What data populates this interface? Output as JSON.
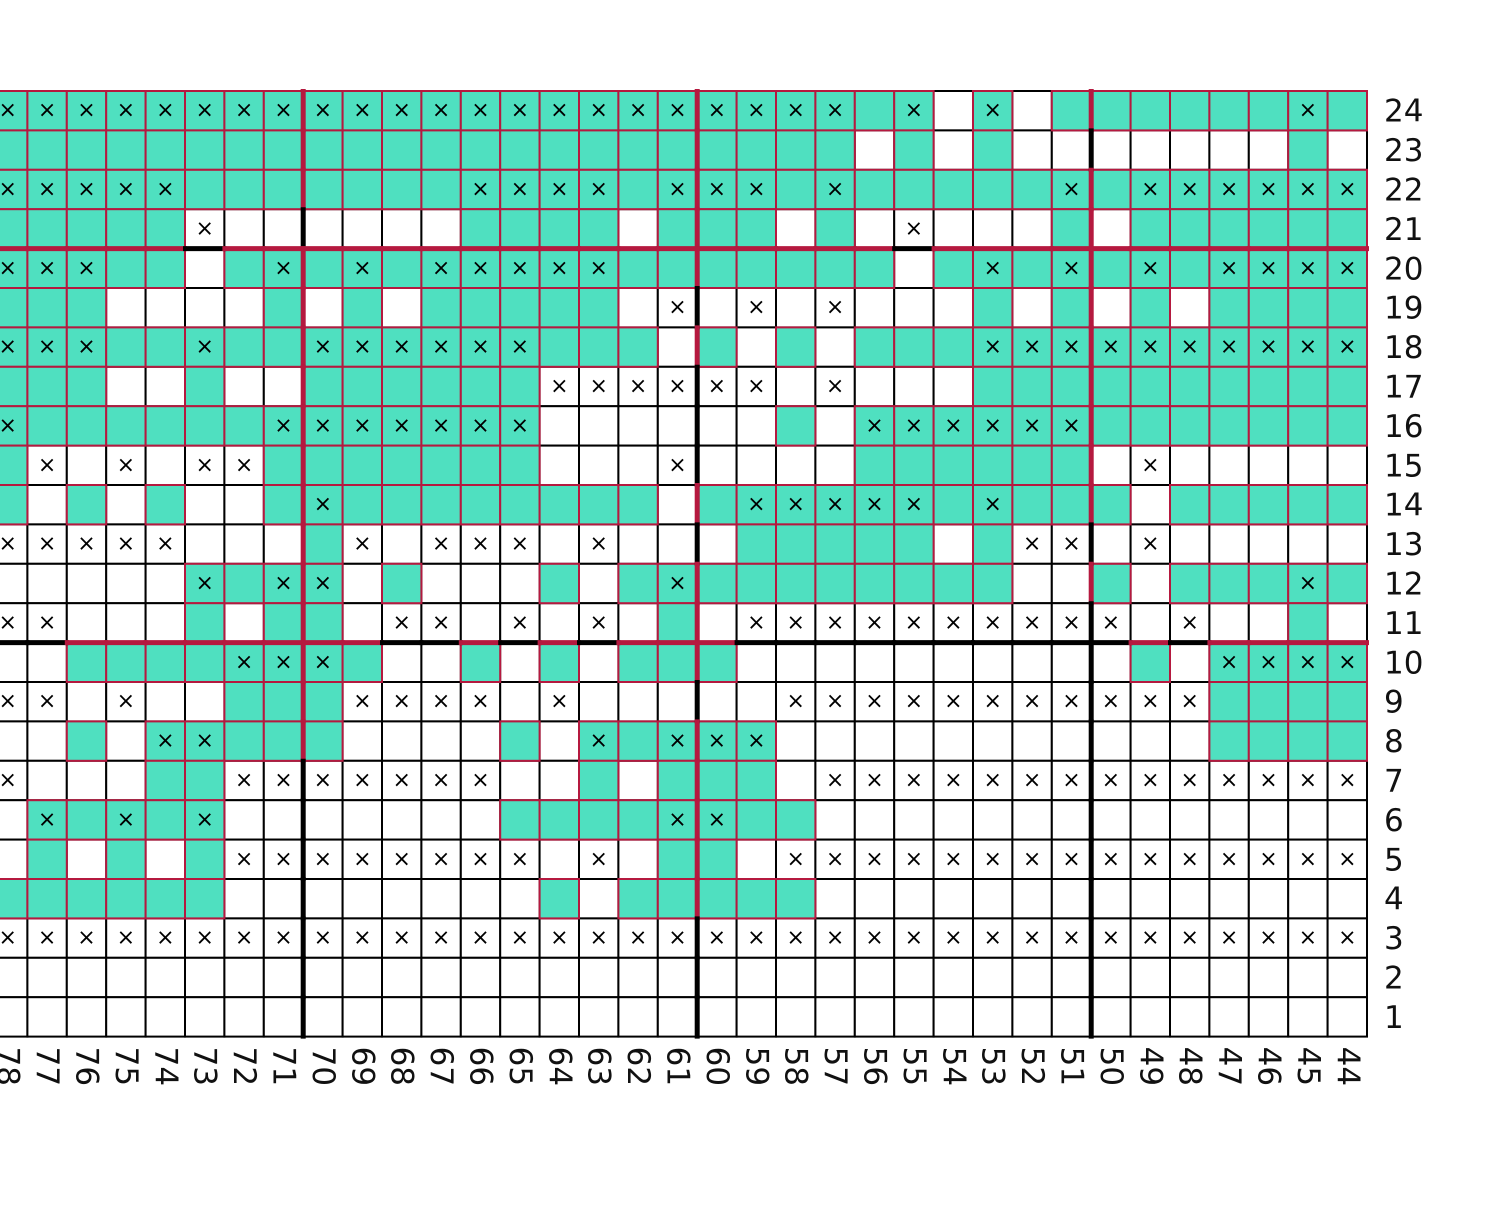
{
  "chart": {
    "mark_symbol": "×",
    "colors": {
      "fill": "#4fe0c0",
      "border": "#b5193f",
      "plain_border": "#000000"
    },
    "columns": [
      "78",
      "77",
      "76",
      "75",
      "74",
      "73",
      "72",
      "71",
      "70",
      "69",
      "68",
      "67",
      "66",
      "65",
      "64",
      "63",
      "62",
      "61",
      "60",
      "59",
      "58",
      "57",
      "56",
      "55",
      "54",
      "53",
      "52",
      "51",
      "50",
      "49",
      "48",
      "47",
      "46",
      "45",
      "44"
    ],
    "rows": [
      {
        "label": "24",
        "cells": "XXXXXXXXXXXXXXXXXXXXXXTX.X.TTTTTTXT"
      },
      {
        "label": "23",
        "cells": "TTTTTTTTTTTTTTTTTTTTTT.T.T.......T."
      },
      {
        "label": "22",
        "cells": "XXXXXTTTTTTTXXXXTXXXTXTTTTTXTXXXXXX"
      },
      {
        "label": "21",
        "cells": "TTTTTx......TTTT.TTT.T.x...T.TTTTTT"
      },
      {
        "label": "20",
        "cells": "XXXTT.TXTXTXXXXXTTTTTTT.TXTXTXTXXXX"
      },
      {
        "label": "19",
        "cells": "TTT....T.T.TTTTT.x.x.x...T.T.T.TTTT"
      },
      {
        "label": "18",
        "cells": "XXXTTXTTXXXXXXTTT.T.T.TTTXXXXXXXXXX"
      },
      {
        "label": "17",
        "cells": "TTT..T..TTTTTTxxxxxx.x...TTTTTTTTTT"
      },
      {
        "label": "16",
        "cells": "XTTTTTTXXXXXXX......T.XXXXXXTTTTTTT"
      },
      {
        "label": "15",
        "cells": "Tx.x.xxTTTTTTT...x....TTTTTT.x....."
      },
      {
        "label": "14",
        "cells": "T.T.T..TXTTTTTTTT.TXXXXXTXTTT.TTTTT"
      },
      {
        "label": "13",
        "cells": "xxxxx...Tx.xxx.x...TTTTT.Txx.x....."
      },
      {
        "label": "12",
        "cells": ".....XTXX.T...T.TXTTTTTTTT..T.TTTXT"
      },
      {
        "label": "11",
        "cells": "xx...T.TT.xx.x.x.T.xxxxxxxxxx.x..T."
      },
      {
        "label": "10",
        "cells": "..TTTTXXXT..T.T.TTT..........T.XXXX"
      },
      {
        "label": "9",
        "cells": "xx.x..TTTxxxx.x.....xxxxxxxxxxxTTTT"
      },
      {
        "label": "8",
        "cells": "..T.XXTTT....T.XTXXX...........TTTT"
      },
      {
        "label": "7",
        "cells": "x...TTxxxxxxx..T.TTT.xxxxxxxxxxxxxx"
      },
      {
        "label": "6",
        "cells": ".XTXTX.......TTTTXXTT.............."
      },
      {
        "label": "5",
        "cells": ".T.T.Txxxxxxxx.x.TT.xxxxxxxxxxxxxxx"
      },
      {
        "label": "4",
        "cells": "TTTTTT........T.TTTTT.............."
      },
      {
        "label": "3",
        "cells": "xxxxxxxxxxxxxxxxxxxxxxxxxxxxxxxxxxx"
      },
      {
        "label": "2",
        "cells": "..................................."
      },
      {
        "label": "1",
        "cells": "..................................."
      }
    ]
  }
}
